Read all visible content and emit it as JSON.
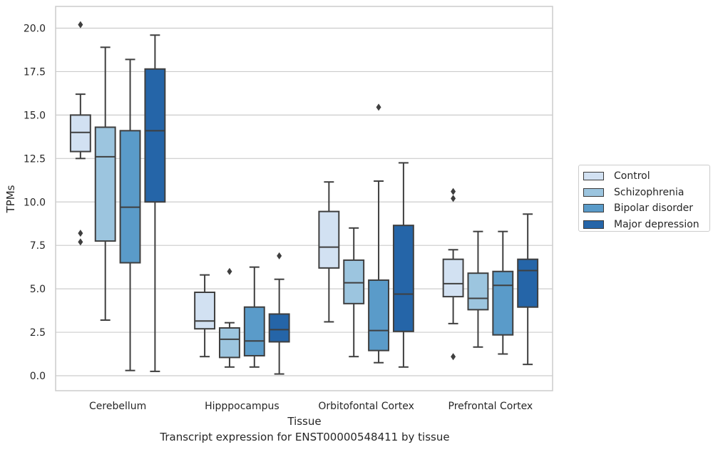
{
  "chart_data": {
    "type": "boxplot",
    "caption": "Transcript expression for ENST00000548411 by tissue",
    "xlabel": "Tissue",
    "ylabel": "TPMs",
    "ylim": [
      -0.8,
      21.3
    ],
    "yticks": [
      0.0,
      2.5,
      5.0,
      7.5,
      10.0,
      12.5,
      15.0,
      17.5,
      20.0
    ],
    "ytick_labels": [
      "0.0",
      "2.5",
      "5.0",
      "7.5",
      "10.0",
      "12.5",
      "15.0",
      "17.5",
      "20.0"
    ],
    "grid": true,
    "legend_position": "right, outside plot",
    "categories": [
      "Cerebellum",
      "Hipppocampus",
      "Orbitofontal Cortex",
      "Prefrontal Cortex"
    ],
    "series": [
      {
        "name": "Control",
        "color": "#d2e1f2",
        "boxes": [
          {
            "whislo": 12.5,
            "q1": 12.9,
            "med": 14.0,
            "q3": 15.0,
            "whishi": 16.2,
            "fliers": [
              20.2,
              8.2,
              7.7
            ]
          },
          {
            "whislo": 1.1,
            "q1": 2.7,
            "med": 3.15,
            "q3": 4.8,
            "whishi": 5.8,
            "fliers": []
          },
          {
            "whislo": 3.1,
            "q1": 6.2,
            "med": 7.4,
            "q3": 9.45,
            "whishi": 11.15,
            "fliers": []
          },
          {
            "whislo": 3.0,
            "q1": 4.55,
            "med": 5.3,
            "q3": 6.7,
            "whishi": 7.25,
            "fliers": [
              10.6,
              10.2,
              1.1
            ]
          }
        ]
      },
      {
        "name": "Schizophrenia",
        "color": "#9cc5df",
        "boxes": [
          {
            "whislo": 3.2,
            "q1": 7.75,
            "med": 12.6,
            "q3": 14.3,
            "whishi": 18.9,
            "fliers": []
          },
          {
            "whislo": 0.5,
            "q1": 1.05,
            "med": 2.1,
            "q3": 2.75,
            "whishi": 3.05,
            "fliers": [
              6.0
            ]
          },
          {
            "whislo": 1.1,
            "q1": 4.15,
            "med": 5.35,
            "q3": 6.65,
            "whishi": 8.5,
            "fliers": []
          },
          {
            "whislo": 1.65,
            "q1": 3.8,
            "med": 4.45,
            "q3": 5.9,
            "whishi": 8.3,
            "fliers": []
          }
        ]
      },
      {
        "name": "Bipolar disorder",
        "color": "#5a9bc9",
        "boxes": [
          {
            "whislo": 0.3,
            "q1": 6.5,
            "med": 9.7,
            "q3": 14.1,
            "whishi": 18.2,
            "fliers": []
          },
          {
            "whislo": 0.5,
            "q1": 1.15,
            "med": 2.0,
            "q3": 3.95,
            "whishi": 6.25,
            "fliers": []
          },
          {
            "whislo": 0.75,
            "q1": 1.45,
            "med": 2.6,
            "q3": 5.5,
            "whishi": 11.2,
            "fliers": [
              15.45
            ]
          },
          {
            "whislo": 1.25,
            "q1": 2.35,
            "med": 5.2,
            "q3": 6.0,
            "whishi": 8.3,
            "fliers": []
          }
        ]
      },
      {
        "name": "Major depression",
        "color": "#2565a8",
        "boxes": [
          {
            "whislo": 0.25,
            "q1": 10.0,
            "med": 14.1,
            "q3": 17.65,
            "whishi": 19.6,
            "fliers": []
          },
          {
            "whislo": 0.1,
            "q1": 1.95,
            "med": 2.65,
            "q3": 3.55,
            "whishi": 5.55,
            "fliers": [
              6.9
            ]
          },
          {
            "whislo": 0.5,
            "q1": 2.55,
            "med": 4.7,
            "q3": 8.65,
            "whishi": 12.25,
            "fliers": []
          },
          {
            "whislo": 0.65,
            "q1": 3.95,
            "med": 6.05,
            "q3": 6.7,
            "whishi": 9.3,
            "fliers": []
          }
        ]
      }
    ]
  }
}
